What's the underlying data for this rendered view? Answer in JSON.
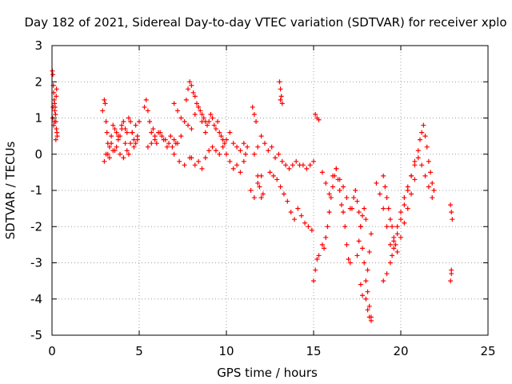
{
  "chart_data": {
    "type": "scatter",
    "title": "Day 182 of 2021, Sidereal Day-to-day VTEC variation (SDTVAR) for receiver xplo",
    "xlabel": "GPS time / hours",
    "ylabel": "SDTVAR / TECUs",
    "xlim": [
      0,
      25
    ],
    "ylim": [
      -5,
      3
    ],
    "xticks": [
      "0",
      "5",
      "10",
      "15",
      "20",
      "25"
    ],
    "yticks": [
      "3",
      "2",
      "1",
      "0",
      "-1",
      "-2",
      "-3",
      "-4",
      "-5"
    ],
    "grid": true,
    "marker": "+",
    "color": "#ff0000",
    "series": [
      {
        "name": "xplo",
        "x": [
          0.02,
          0.05,
          0.08,
          0.1,
          0.12,
          0.15,
          0.18,
          0.2,
          0.22,
          0.25,
          0.28,
          0.3,
          0.04,
          0.1,
          0.16,
          0.22,
          0.26,
          0.06,
          0.14,
          0.24,
          2.9,
          3.0,
          3.05,
          3.1,
          3.15,
          3.2,
          3.3,
          3.4,
          3.5,
          3.6,
          3.7,
          3.8,
          3.9,
          4.0,
          4.1,
          4.2,
          4.3,
          4.4,
          4.5,
          4.6,
          4.7,
          4.8,
          4.9,
          5.0,
          3.1,
          3.3,
          3.5,
          3.7,
          3.9,
          4.1,
          4.3,
          4.5,
          4.7,
          4.9,
          3.0,
          3.2,
          3.4,
          3.6,
          3.8,
          4.0,
          4.2,
          4.4,
          4.6,
          4.8,
          5.3,
          5.4,
          5.5,
          5.6,
          5.7,
          5.8,
          5.9,
          6.0,
          6.2,
          6.4,
          6.6,
          6.8,
          7.0,
          7.2,
          7.4,
          5.5,
          5.7,
          5.9,
          6.1,
          6.3,
          6.5,
          6.7,
          6.9,
          7.1,
          7.0,
          7.2,
          7.4,
          7.6,
          7.8,
          8.0,
          8.2,
          8.4,
          8.6,
          8.8,
          7.0,
          7.3,
          7.6,
          7.9,
          7.7,
          7.8,
          7.9,
          8.0,
          8.1,
          8.2,
          8.3,
          8.4,
          8.5,
          8.6,
          8.7,
          8.8,
          8.9,
          9.0,
          9.1,
          9.2,
          9.3,
          9.4,
          9.5,
          9.6,
          9.7,
          9.8,
          9.9,
          8.0,
          8.2,
          8.4,
          8.6,
          8.8,
          9.0,
          9.2,
          9.4,
          9.6,
          9.8,
          10.0,
          10.2,
          10.4,
          10.6,
          10.8,
          11.0,
          10.0,
          10.2,
          10.4,
          10.6,
          10.8,
          11.0,
          11.1,
          11.2,
          11.5,
          11.6,
          11.7,
          11.8,
          11.9,
          12.0,
          12.1,
          11.6,
          11.8,
          12.0,
          11.4,
          11.6,
          11.8,
          12.0,
          12.2,
          12.4,
          12.6,
          12.8,
          13.0,
          13.2,
          13.4,
          13.6,
          13.8,
          14.0,
          14.2,
          14.4,
          14.6,
          14.8,
          15.0,
          12.5,
          12.7,
          12.9,
          13.1,
          13.3,
          13.5,
          13.7,
          13.9,
          14.1,
          14.3,
          14.5,
          14.7,
          14.9,
          13.05,
          13.1,
          13.15,
          13.1,
          13.2,
          15.1,
          15.2,
          15.3,
          15.0,
          15.1,
          15.2,
          15.3,
          15.5,
          15.6,
          15.7,
          15.8,
          15.9,
          16.0,
          16.1,
          16.2,
          16.3,
          16.4,
          16.5,
          16.6,
          16.7,
          15.5,
          15.7,
          15.9,
          16.1,
          16.3,
          16.5,
          16.7,
          16.9,
          17.1,
          16.8,
          16.9,
          17.0,
          17.1,
          17.2,
          17.3,
          17.4,
          17.5,
          17.6,
          17.7,
          17.8,
          17.9,
          18.0,
          18.1,
          18.2,
          18.3,
          18.1,
          18.2,
          18.3,
          18.0,
          17.9,
          17.8,
          17.7,
          17.6,
          17.5,
          18.0,
          18.1,
          18.2,
          18.3,
          17.7,
          17.8,
          18.6,
          18.8,
          19.0,
          19.2,
          19.4,
          19.5,
          19.6,
          19.8,
          20.0,
          20.2,
          20.4,
          20.6,
          20.8,
          21.0,
          21.2,
          21.4,
          21.6,
          21.8,
          19.0,
          19.2,
          19.4,
          19.6,
          19.8,
          20.0,
          20.2,
          20.4,
          20.6,
          20.8,
          21.0,
          21.1,
          21.2,
          21.3,
          21.4,
          21.5,
          21.6,
          21.7,
          21.8,
          21.9,
          19.0,
          19.1,
          19.2,
          19.3,
          19.4,
          19.5,
          19.6,
          19.7,
          19.8,
          20.0,
          20.2,
          20.4,
          20.6,
          20.8,
          22.85,
          22.9,
          22.95,
          22.9,
          22.85,
          22.9
        ],
        "y": [
          2.3,
          2.2,
          1.9,
          1.7,
          1.5,
          1.4,
          1.3,
          1.1,
          0.9,
          0.7,
          0.6,
          0.5,
          1.0,
          0.8,
          1.2,
          0.4,
          1.8,
          1.3,
          0.9,
          1.6,
          1.2,
          1.5,
          1.4,
          0.9,
          0.6,
          0.3,
          0.2,
          0.5,
          0.8,
          0.7,
          0.6,
          0.4,
          0.5,
          0.8,
          0.9,
          0.7,
          0.6,
          1.0,
          0.9,
          0.6,
          0.4,
          0.3,
          0.5,
          0.9,
          0.0,
          -0.1,
          0.1,
          0.2,
          0.0,
          -0.1,
          0.1,
          0.3,
          0.2,
          0.4,
          -0.2,
          0.0,
          0.3,
          0.1,
          0.5,
          0.7,
          0.3,
          0.0,
          0.6,
          0.8,
          1.3,
          1.5,
          1.2,
          0.9,
          0.6,
          0.7,
          0.5,
          0.3,
          0.6,
          0.4,
          0.2,
          0.5,
          0.4,
          0.3,
          0.5,
          0.2,
          0.3,
          0.4,
          0.6,
          0.5,
          0.4,
          0.3,
          0.2,
          0.3,
          1.4,
          1.2,
          1.0,
          0.9,
          0.8,
          0.7,
          1.1,
          1.3,
          0.9,
          0.6,
          0.0,
          -0.2,
          -0.3,
          -0.1,
          1.5,
          1.8,
          2.0,
          1.9,
          1.7,
          1.6,
          1.4,
          1.3,
          1.2,
          1.1,
          1.0,
          0.9,
          0.8,
          0.9,
          1.1,
          1.0,
          0.8,
          0.7,
          0.9,
          0.6,
          0.5,
          0.4,
          0.3,
          -0.1,
          -0.3,
          -0.2,
          -0.4,
          -0.1,
          0.1,
          0.2,
          0.1,
          0.0,
          0.2,
          0.4,
          0.6,
          0.3,
          0.2,
          0.1,
          0.3,
          0.0,
          -0.2,
          -0.4,
          -0.3,
          -0.5,
          -0.2,
          0.0,
          0.2,
          1.3,
          1.1,
          0.9,
          -0.6,
          -0.9,
          -1.2,
          -1.1,
          0.0,
          0.2,
          0.5,
          -1.0,
          -1.2,
          -0.8,
          -0.6,
          0.3,
          0.1,
          0.2,
          -0.1,
          0.0,
          -0.2,
          -0.3,
          -0.4,
          -0.3,
          -0.2,
          -0.3,
          -0.3,
          -0.4,
          -0.3,
          -0.2,
          -0.5,
          -0.6,
          -0.7,
          -0.9,
          -1.1,
          -1.3,
          -1.6,
          -1.8,
          -1.5,
          -1.7,
          -1.9,
          -2.0,
          -2.1,
          2.0,
          1.8,
          1.6,
          1.5,
          1.4,
          1.1,
          1.0,
          0.95,
          -3.5,
          -3.2,
          -2.9,
          -2.8,
          -2.5,
          -2.6,
          -2.3,
          -2.0,
          -1.6,
          -1.2,
          -0.9,
          -0.6,
          -0.4,
          -0.7,
          -1.0,
          -1.4,
          -1.6,
          -0.5,
          -0.8,
          -1.1,
          -0.6,
          -0.4,
          -0.7,
          -0.9,
          -1.2,
          -1.5,
          -2.0,
          -2.5,
          -2.9,
          -3.0,
          -1.5,
          -1.2,
          -1.0,
          -1.3,
          -1.6,
          -2.0,
          -2.6,
          -3.0,
          -3.5,
          -3.8,
          -4.2,
          -4.5,
          -3.2,
          -2.7,
          -2.2,
          -1.8,
          -1.5,
          -1.7,
          -2.0,
          -2.4,
          -2.8,
          -4.0,
          -4.3,
          -4.5,
          -4.6,
          -3.6,
          -3.9,
          -0.8,
          -1.1,
          -1.5,
          -2.0,
          -2.5,
          -2.8,
          -2.4,
          -2.0,
          -1.6,
          -1.2,
          -0.9,
          -0.6,
          -0.3,
          -0.1,
          -0.3,
          -0.6,
          -0.9,
          -1.2,
          -3.5,
          -3.3,
          -3.0,
          -2.6,
          -2.2,
          -1.8,
          -1.4,
          -1.0,
          -0.6,
          -0.2,
          0.1,
          0.4,
          0.6,
          0.8,
          0.5,
          0.2,
          -0.2,
          -0.5,
          -0.8,
          -1.0,
          -0.6,
          -0.9,
          -1.2,
          -1.5,
          -1.8,
          -2.0,
          -2.3,
          -2.5,
          -2.7,
          -2.3,
          -1.9,
          -1.5,
          -1.1,
          -0.7,
          -1.4,
          -1.6,
          -1.8,
          -3.3,
          -3.5,
          -3.2
        ]
      }
    ]
  }
}
